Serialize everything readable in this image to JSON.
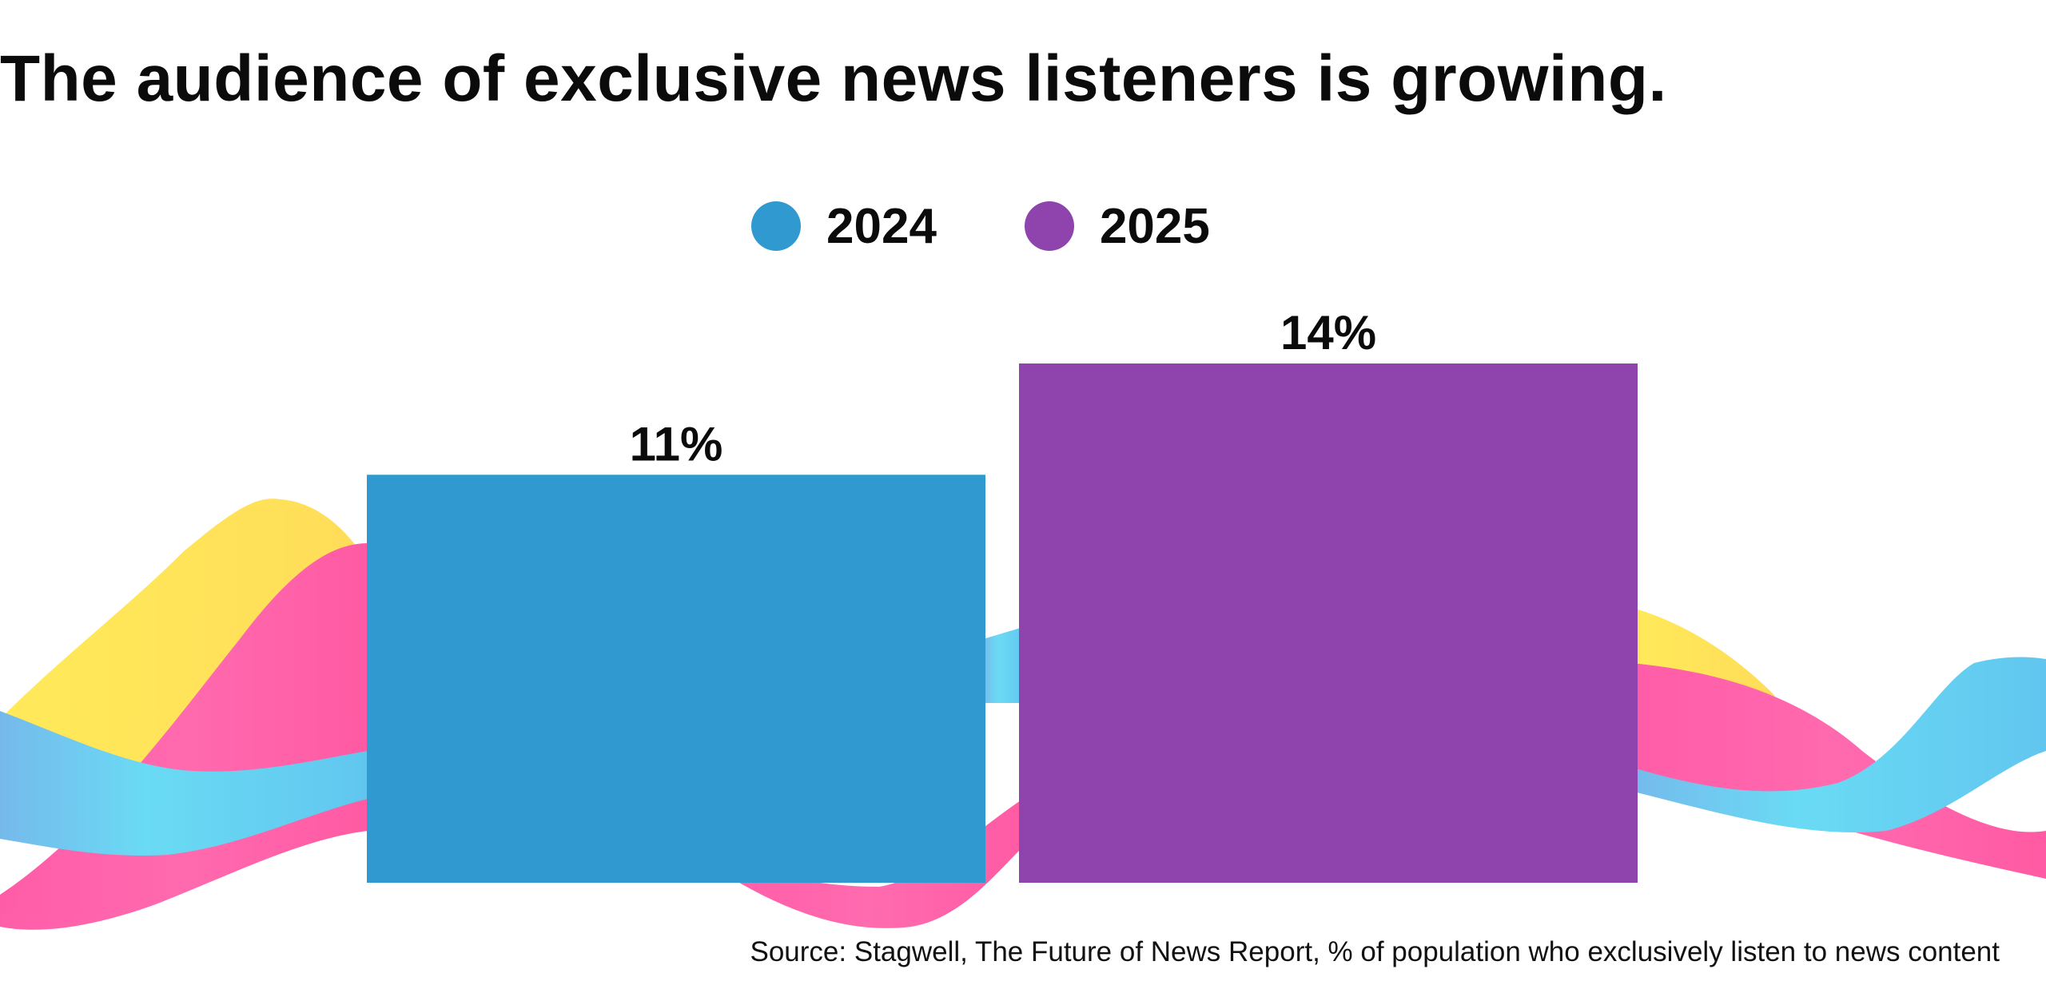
{
  "title": "The audience of exclusive news listeners is growing.",
  "source": "Source: Stagwell, The Future of News Report, % of population who exclusively listen to news content",
  "chart_data": {
    "type": "bar",
    "categories": [
      "2024",
      "2025"
    ],
    "values": [
      11,
      14
    ],
    "value_labels": [
      "11%",
      "14%"
    ],
    "colors": [
      "#3099cf",
      "#8e43ad"
    ],
    "unit": "%",
    "ylim": [
      0,
      14
    ],
    "grid": false,
    "legend_position": "top-center",
    "legend": [
      {
        "label": "2024",
        "color": "#3099cf"
      },
      {
        "label": "2025",
        "color": "#8e43ad"
      }
    ]
  }
}
